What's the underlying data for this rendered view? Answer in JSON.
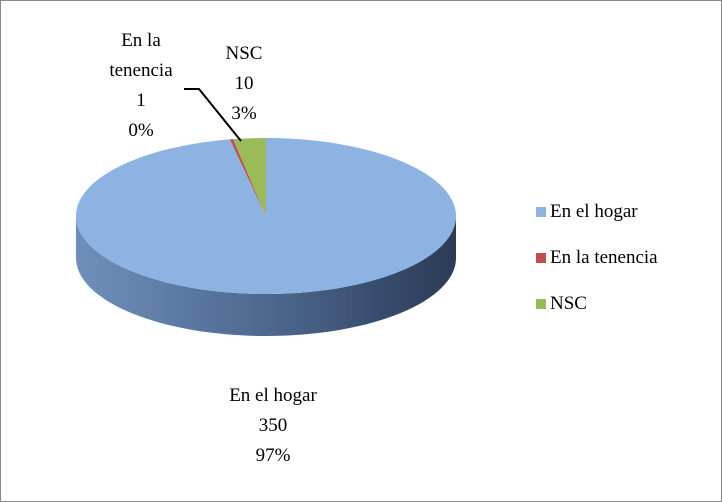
{
  "chart_data": {
    "type": "pie3d",
    "categories": [
      "En el hogar",
      "En la tenencia",
      "NSC"
    ],
    "values": [
      350,
      1,
      10
    ],
    "percent_labels": [
      "97%",
      "0%",
      "3%"
    ],
    "colors": [
      "#8db3e2",
      "#c0504d",
      "#9bbb59"
    ],
    "legend": "right"
  }
}
